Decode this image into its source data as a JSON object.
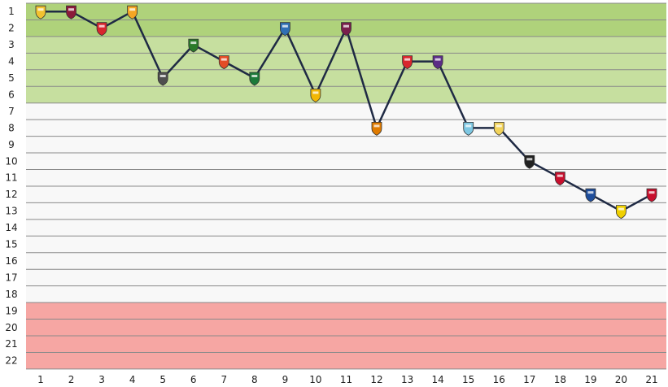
{
  "chart_data": {
    "type": "line",
    "title": "",
    "xlabel": "",
    "ylabel": "",
    "x": [
      1,
      2,
      3,
      4,
      5,
      6,
      7,
      8,
      9,
      10,
      11,
      12,
      13,
      14,
      15,
      16,
      17,
      18,
      19,
      20,
      21
    ],
    "x_tick_labels": [
      "1",
      "2",
      "3",
      "4",
      "5",
      "6",
      "7",
      "8",
      "9",
      "10",
      "11",
      "12",
      "13",
      "14",
      "15",
      "16",
      "17",
      "18",
      "19",
      "20",
      "21"
    ],
    "y_tick_labels": [
      "1",
      "2",
      "3",
      "4",
      "5",
      "6",
      "7",
      "8",
      "9",
      "10",
      "11",
      "12",
      "13",
      "14",
      "15",
      "16",
      "17",
      "18",
      "19",
      "20",
      "21",
      "22"
    ],
    "ylim": [
      1,
      22
    ],
    "y_inverted": true,
    "grid": true,
    "series": [
      {
        "values": [
          1,
          1,
          2,
          1,
          5,
          3,
          4,
          5,
          2,
          6,
          2,
          8,
          4,
          4,
          8,
          8,
          10,
          11,
          12,
          13,
          12
        ]
      }
    ],
    "zones": [
      {
        "from": 1,
        "to": 2,
        "color": "#afd27b"
      },
      {
        "from": 3,
        "to": 6,
        "color": "#c6df9f"
      },
      {
        "from": 7,
        "to": 18,
        "color": "#f8f8f8"
      },
      {
        "from": 19,
        "to": 22,
        "color": "#f6a6a3"
      }
    ],
    "line_color": "#1f2a44",
    "marker_colors": [
      "#f2c230",
      "#8b1a3a",
      "#d8262e",
      "#f5a623",
      "#4f4f4f",
      "#2a7a2a",
      "#e34c26",
      "#1c7a3a",
      "#2f6fb4",
      "#f2b705",
      "#7a1f4c",
      "#e07b00",
      "#d8262e",
      "#5b2d86",
      "#7ec8e3",
      "#f2d35a",
      "#222222",
      "#c8102e",
      "#1f4e9c",
      "#f0d000",
      "#c8102e"
    ]
  }
}
